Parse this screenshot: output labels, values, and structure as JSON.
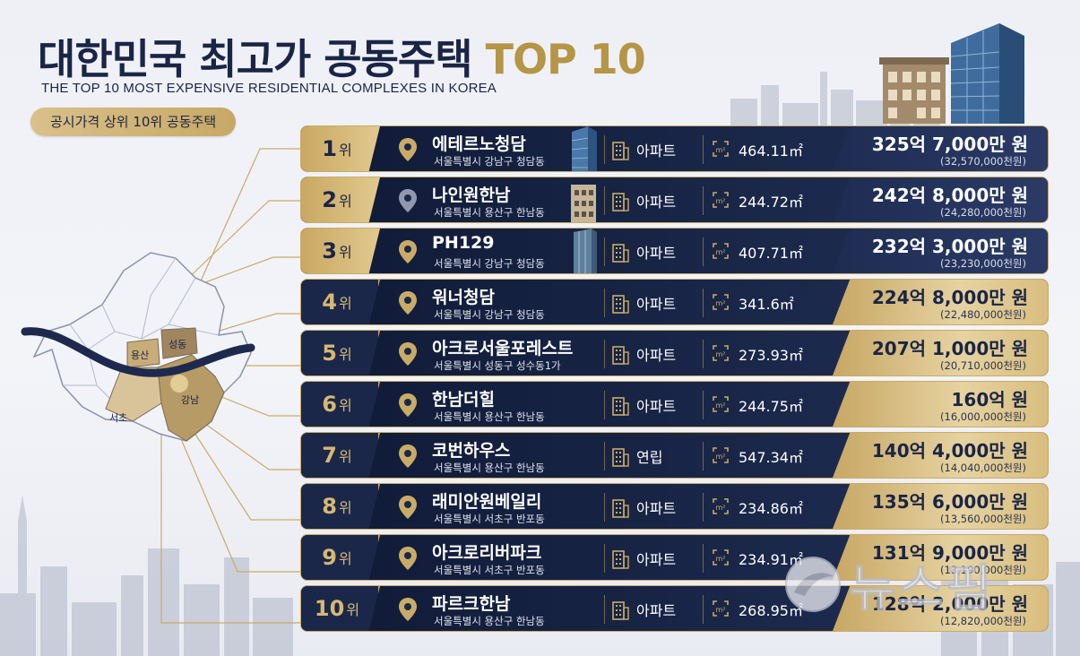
{
  "header": {
    "title_main": "대한민국 최고가 공동주택",
    "title_accent": "TOP 10",
    "title_en": "THE TOP 10 MOST EXPENSIVE RESIDENTIAL COMPLEXES IN KOREA",
    "subtitle": "공시가격 상위 10위 공동주택"
  },
  "map": {
    "districts": [
      "용산",
      "성동",
      "강남",
      "서초"
    ]
  },
  "rank_unit": "위",
  "rows": [
    {
      "rank": "1",
      "name": "에테르노청담",
      "address": "서울특별시 강남구 청담동",
      "type": "아파트",
      "area": "464.11㎡",
      "price": "325억 7,000만 원",
      "price_sub": "(32,570,000천원)",
      "style": "dark"
    },
    {
      "rank": "2",
      "name": "나인원한남",
      "address": "서울특별시 용산구 한남동",
      "type": "아파트",
      "area": "244.72㎡",
      "price": "242억 8,000만 원",
      "price_sub": "(24,280,000천원)",
      "style": "dark"
    },
    {
      "rank": "3",
      "name": "PH129",
      "address": "서울특별시 강남구 청담동",
      "type": "아파트",
      "area": "407.71㎡",
      "price": "232억 3,000만 원",
      "price_sub": "(23,230,000천원)",
      "style": "dark"
    },
    {
      "rank": "4",
      "name": "워너청담",
      "address": "서울특별시 강남구 청담동",
      "type": "아파트",
      "area": "341.6㎡",
      "price": "224억 8,000만 원",
      "price_sub": "(22,480,000천원)",
      "style": "gold"
    },
    {
      "rank": "5",
      "name": "아크로서울포레스트",
      "address": "서울특별시 성동구 성수동1가",
      "type": "아파트",
      "area": "273.93㎡",
      "price": "207억 1,000만 원",
      "price_sub": "(20,710,000천원)",
      "style": "gold"
    },
    {
      "rank": "6",
      "name": "한남더힐",
      "address": "서울특별시 용산구 한남동",
      "type": "아파트",
      "area": "244.75㎡",
      "price": "160억 원",
      "price_sub": "(16,000,000천원)",
      "style": "gold"
    },
    {
      "rank": "7",
      "name": "코번하우스",
      "address": "서울특별시 용산구 한남동",
      "type": "연립",
      "area": "547.34㎡",
      "price": "140억 4,000만 원",
      "price_sub": "(14,040,000천원)",
      "style": "gold"
    },
    {
      "rank": "8",
      "name": "래미안원베일리",
      "address": "서울특별시 서초구 반포동",
      "type": "아파트",
      "area": "234.86㎡",
      "price": "135억 6,000만 원",
      "price_sub": "(13,560,000천원)",
      "style": "gold"
    },
    {
      "rank": "9",
      "name": "아크로리버파크",
      "address": "서울특별시 서초구 반포동",
      "type": "아파트",
      "area": "234.91㎡",
      "price": "131억 9,000만 원",
      "price_sub": "(13,190,000천원)",
      "style": "gold"
    },
    {
      "rank": "10",
      "name": "파르크한남",
      "address": "서울특별시 용산구 한남동",
      "type": "아파트",
      "area": "268.95㎡",
      "price": "128억 2,000만 원",
      "price_sub": "(12,820,000천원)",
      "style": "gold"
    }
  ],
  "watermark": "뉴스핌",
  "colors": {
    "navy": "#1a2546",
    "gold": "#c9ab68",
    "accent": "#b59546"
  }
}
